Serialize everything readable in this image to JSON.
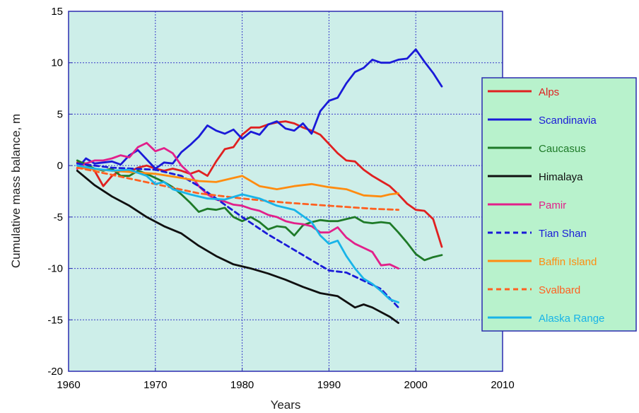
{
  "chart_data": {
    "type": "line",
    "xlabel": "Years",
    "ylabel": "Cumulative mass balance, m",
    "xlim": [
      1960,
      2010
    ],
    "ylim": [
      -20,
      15
    ],
    "xticks": [
      1960,
      1970,
      1980,
      1990,
      2000,
      2010
    ],
    "yticks": [
      15,
      10,
      5,
      0,
      -5,
      -10,
      -15,
      -20
    ],
    "grid": true,
    "legend_position": "right",
    "plot_background": "#cdeee9",
    "legend_background": "#b8f2cc",
    "series": [
      {
        "name": "Alps",
        "color": "#e02020",
        "dash": false,
        "x": [
          1961,
          1962,
          1963,
          1964,
          1965,
          1966,
          1967,
          1968,
          1969,
          1970,
          1971,
          1972,
          1973,
          1974,
          1975,
          1976,
          1977,
          1978,
          1979,
          1980,
          1981,
          1982,
          1983,
          1984,
          1985,
          1986,
          1987,
          1988,
          1989,
          1990,
          1991,
          1992,
          1993,
          1994,
          1995,
          1996,
          1997,
          1998,
          1999,
          2000,
          2001,
          2002,
          2003
        ],
        "y": [
          0.3,
          0.2,
          -0.5,
          -2.0,
          -1.0,
          -0.5,
          -0.6,
          -0.2,
          0.0,
          -0.3,
          -0.5,
          -0.3,
          -0.5,
          -0.8,
          -0.5,
          -1.0,
          0.4,
          1.6,
          1.8,
          3.0,
          3.7,
          3.7,
          4.0,
          4.2,
          4.3,
          4.1,
          3.7,
          3.4,
          3.0,
          2.1,
          1.2,
          0.5,
          0.4,
          -0.4,
          -1.0,
          -1.5,
          -2.0,
          -2.8,
          -3.7,
          -4.3,
          -4.4,
          -5.2,
          -7.9
        ]
      },
      {
        "name": "Scandinavia",
        "color": "#1a1ad8",
        "dash": false,
        "x": [
          1961,
          1962,
          1963,
          1964,
          1965,
          1966,
          1967,
          1968,
          1969,
          1970,
          1971,
          1972,
          1973,
          1974,
          1975,
          1976,
          1977,
          1978,
          1979,
          1980,
          1981,
          1982,
          1983,
          1984,
          1985,
          1986,
          1987,
          1988,
          1989,
          1990,
          1991,
          1992,
          1993,
          1994,
          1995,
          1996,
          1997,
          1998,
          1999,
          2000,
          2001,
          2002,
          2003
        ],
        "y": [
          -0.3,
          0.7,
          0.2,
          0.3,
          0.4,
          0.1,
          1.0,
          1.5,
          0.6,
          -0.3,
          0.3,
          0.2,
          1.3,
          2.0,
          2.8,
          3.9,
          3.4,
          3.1,
          3.5,
          2.6,
          3.3,
          3.0,
          4.0,
          4.3,
          3.6,
          3.4,
          4.1,
          3.1,
          5.3,
          6.3,
          6.6,
          8.0,
          9.1,
          9.5,
          10.3,
          10.0,
          10.0,
          10.3,
          10.4,
          11.3,
          10.1,
          9.0,
          7.7
        ]
      },
      {
        "name": "Caucasus",
        "color": "#1e7a28",
        "dash": false,
        "x": [
          1961,
          1962,
          1963,
          1964,
          1965,
          1966,
          1967,
          1968,
          1969,
          1970,
          1971,
          1972,
          1973,
          1974,
          1975,
          1976,
          1977,
          1978,
          1979,
          1980,
          1981,
          1982,
          1983,
          1984,
          1985,
          1986,
          1987,
          1988,
          1989,
          1990,
          1991,
          1992,
          1993,
          1994,
          1995,
          1996,
          1997,
          1998,
          1999,
          2000,
          2001,
          2002,
          2003
        ],
        "y": [
          0.5,
          0.1,
          -0.3,
          -0.5,
          -0.3,
          -1.0,
          -1.0,
          -0.5,
          -0.8,
          -1.2,
          -1.6,
          -2.1,
          -2.8,
          -3.6,
          -4.5,
          -4.2,
          -4.3,
          -4.1,
          -5.0,
          -5.4,
          -5.0,
          -5.5,
          -6.2,
          -5.9,
          -6.0,
          -6.8,
          -5.8,
          -5.5,
          -5.3,
          -5.4,
          -5.4,
          -5.2,
          -5.0,
          -5.5,
          -5.6,
          -5.5,
          -5.6,
          -6.5,
          -7.5,
          -8.6,
          -9.2,
          -8.9,
          -8.7
        ]
      },
      {
        "name": "Himalaya",
        "color": "#101010",
        "dash": false,
        "x": [
          1961,
          1963,
          1965,
          1967,
          1969,
          1971,
          1973,
          1975,
          1977,
          1979,
          1981,
          1983,
          1985,
          1987,
          1989,
          1991,
          1993,
          1994,
          1995,
          1997,
          1998
        ],
        "y": [
          -0.5,
          -1.9,
          -3.0,
          -3.9,
          -5.0,
          -5.9,
          -6.6,
          -7.8,
          -8.8,
          -9.6,
          -10.0,
          -10.5,
          -11.1,
          -11.8,
          -12.4,
          -12.7,
          -13.8,
          -13.5,
          -13.8,
          -14.7,
          -15.3
        ]
      },
      {
        "name": "Pamir",
        "color": "#e2208a",
        "dash": false,
        "x": [
          1961,
          1962,
          1963,
          1964,
          1965,
          1966,
          1967,
          1968,
          1969,
          1970,
          1971,
          1972,
          1973,
          1974,
          1975,
          1976,
          1977,
          1978,
          1979,
          1980,
          1981,
          1982,
          1983,
          1984,
          1985,
          1986,
          1987,
          1988,
          1989,
          1990,
          1991,
          1992,
          1993,
          1994,
          1995,
          1996,
          1997,
          1998
        ],
        "y": [
          -0.3,
          0.2,
          0.5,
          0.5,
          0.7,
          1.0,
          0.8,
          1.8,
          2.2,
          1.4,
          1.7,
          1.2,
          0.0,
          -0.8,
          -2.0,
          -2.8,
          -3.3,
          -3.5,
          -3.8,
          -3.9,
          -4.2,
          -4.4,
          -4.8,
          -5.0,
          -5.4,
          -5.6,
          -5.7,
          -5.9,
          -6.5,
          -6.5,
          -6.0,
          -7.0,
          -7.6,
          -8.0,
          -8.4,
          -9.7,
          -9.6,
          -10.0
        ]
      },
      {
        "name": "Tian Shan",
        "color": "#1a1ad8",
        "dash": true,
        "x": [
          1961,
          1965,
          1970,
          1973,
          1975,
          1978,
          1980,
          1983,
          1986,
          1989,
          1990,
          1992,
          1994,
          1996,
          1998
        ],
        "y": [
          0.2,
          -0.2,
          -0.4,
          -1.0,
          -2.0,
          -3.8,
          -5.0,
          -6.7,
          -8.2,
          -9.7,
          -10.2,
          -10.4,
          -11.2,
          -12.0,
          -13.8
        ]
      },
      {
        "name": "Baffin Island",
        "color": "#ff8c10",
        "dash": false,
        "x": [
          1961,
          1965,
          1970,
          1973,
          1975,
          1977,
          1979,
          1980,
          1982,
          1984,
          1986,
          1988,
          1990,
          1992,
          1994,
          1996,
          1997,
          1998
        ],
        "y": [
          -0.2,
          -0.5,
          -0.8,
          -1.2,
          -1.5,
          -1.6,
          -1.2,
          -1.0,
          -2.0,
          -2.3,
          -2.0,
          -1.8,
          -2.1,
          -2.3,
          -2.9,
          -3.0,
          -2.8,
          -2.7
        ]
      },
      {
        "name": "Svalbard",
        "color": "#ff6020",
        "dash": true,
        "x": [
          1961,
          1965,
          1970,
          1975,
          1980,
          1985,
          1990,
          1995,
          1998
        ],
        "y": [
          -0.2,
          -0.9,
          -1.8,
          -2.7,
          -3.2,
          -3.6,
          -3.9,
          -4.2,
          -4.3
        ]
      },
      {
        "name": "Alaska Range",
        "color": "#18b4e8",
        "dash": false,
        "x": [
          1961,
          1963,
          1965,
          1967,
          1969,
          1970,
          1971,
          1972,
          1974,
          1976,
          1978,
          1980,
          1982,
          1984,
          1986,
          1988,
          1989,
          1990,
          1991,
          1992,
          1993,
          1994,
          1995,
          1996,
          1997,
          1998
        ],
        "y": [
          0.0,
          -0.3,
          -0.5,
          -0.4,
          -1.0,
          -1.8,
          -1.6,
          -2.3,
          -2.8,
          -3.2,
          -3.3,
          -2.8,
          -3.2,
          -3.9,
          -4.3,
          -5.5,
          -6.8,
          -7.6,
          -7.3,
          -8.8,
          -10.0,
          -11.0,
          -11.5,
          -12.2,
          -13.0,
          -13.3
        ]
      }
    ]
  }
}
